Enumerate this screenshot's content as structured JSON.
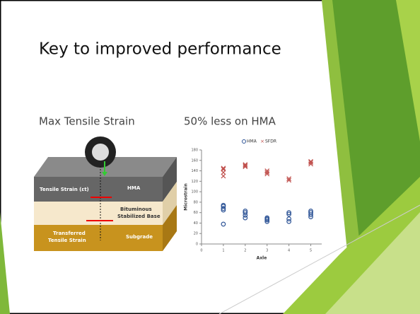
{
  "title": "Key to improved performance",
  "left_caption": "Max Tensile Strain",
  "right_caption": "50% less on HMA",
  "diagram": {
    "tensile_strain": "Tensile Strain (εt)",
    "hma": "HMA",
    "base": [
      "Bituminous",
      "Stabilized Base"
    ],
    "transferred": [
      "Transferred",
      "Tensile Strain"
    ],
    "subgrade": "Subgrade"
  },
  "chart_data": {
    "type": "scatter",
    "x_label": "Axle",
    "y_label": "Microstrain",
    "xlim": [
      0,
      5.5
    ],
    "xticks": [
      0,
      1,
      2,
      3,
      4,
      5
    ],
    "ylim": [
      0,
      180
    ],
    "yticks": [
      0,
      20,
      40,
      60,
      80,
      100,
      120,
      140,
      160,
      180
    ],
    "series": [
      {
        "name": "HMA",
        "color": "#2f5597",
        "marker": "circle",
        "x": [
          1,
          1,
          1,
          1,
          1,
          2,
          2,
          2,
          2,
          3,
          3,
          3,
          3,
          4,
          4,
          4,
          4,
          5,
          5,
          5,
          5
        ],
        "values": [
          38,
          65,
          68,
          72,
          74,
          50,
          55,
          60,
          63,
          43,
          46,
          48,
          50,
          43,
          48,
          57,
          60,
          52,
          56,
          60,
          63
        ]
      },
      {
        "name": "SFDR",
        "color": "#c0504d",
        "marker": "x",
        "x": [
          1,
          1,
          1,
          1,
          2,
          2,
          2,
          3,
          3,
          3,
          4,
          4,
          5,
          5,
          5
        ],
        "values": [
          130,
          137,
          143,
          145,
          148,
          150,
          152,
          134,
          137,
          140,
          122,
          125,
          153,
          156,
          158
        ]
      }
    ]
  }
}
